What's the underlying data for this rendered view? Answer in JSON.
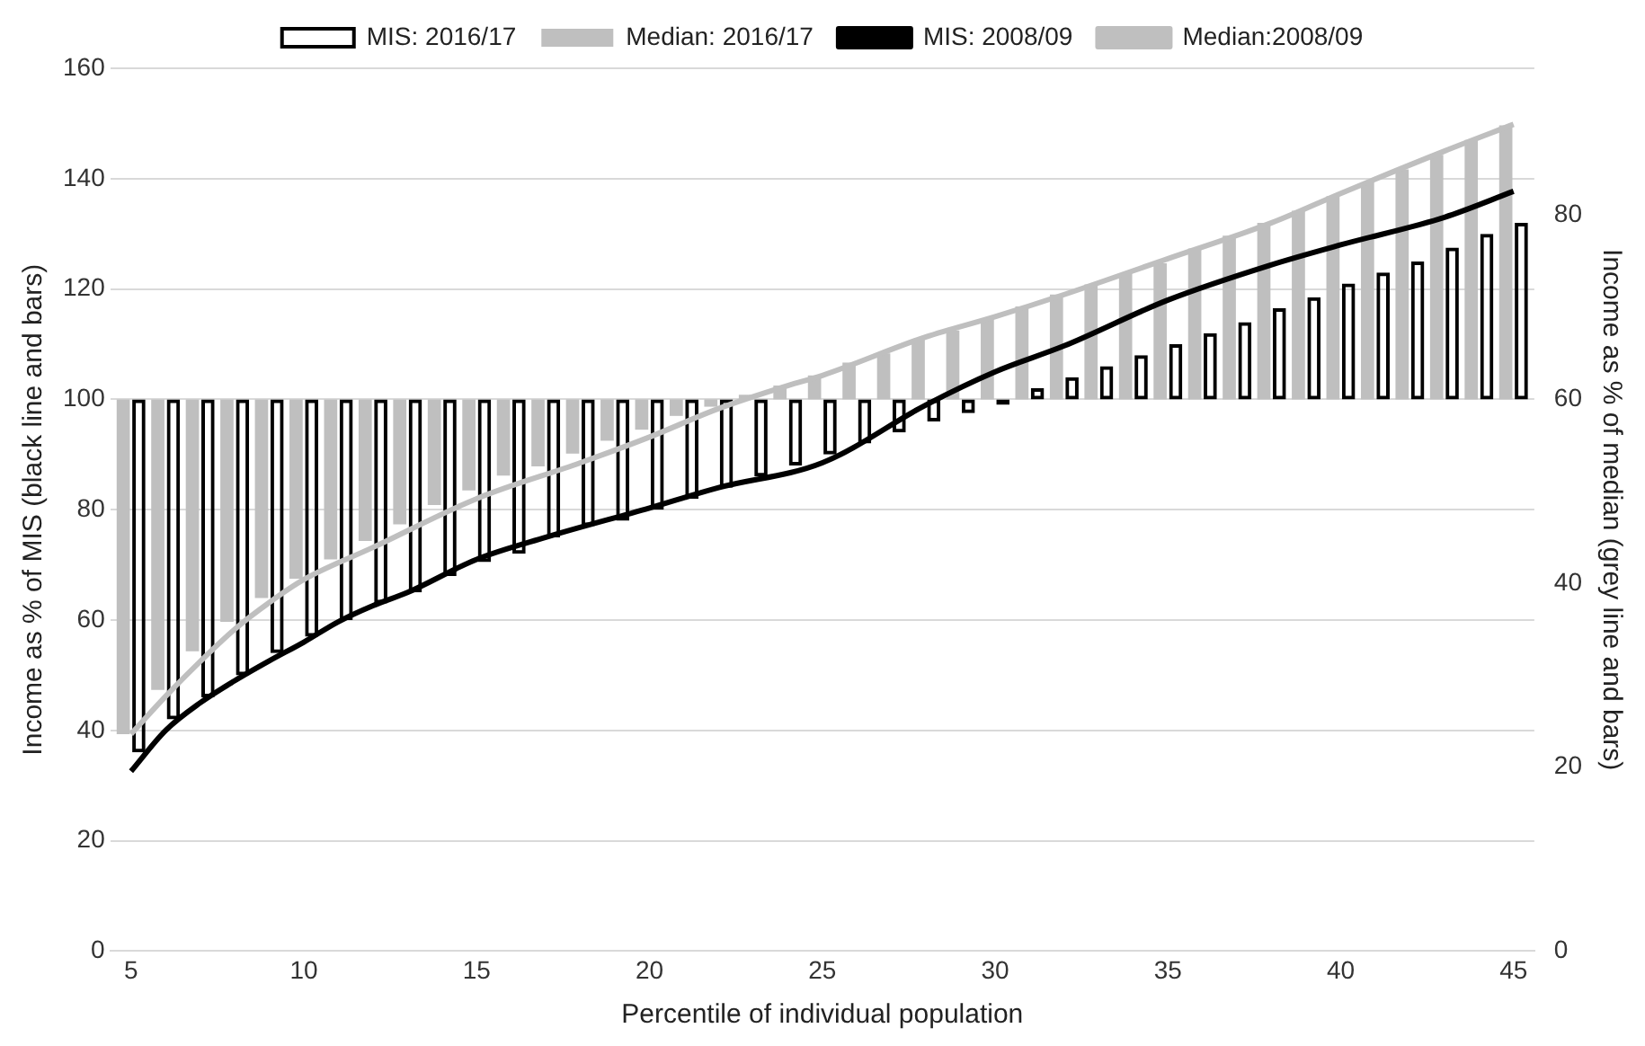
{
  "chart_data": {
    "type": "bar",
    "xlabel": "Percentile of individual population",
    "ylabel": "Income as % of MIS (black line and bars)",
    "y2label": "Income as % of median (grey line and bars)",
    "x": [
      5,
      6,
      7,
      8,
      9,
      10,
      11,
      12,
      13,
      14,
      15,
      16,
      17,
      18,
      19,
      20,
      21,
      22,
      23,
      24,
      25,
      26,
      27,
      28,
      29,
      30,
      31,
      32,
      33,
      34,
      35,
      36,
      37,
      38,
      39,
      40,
      41,
      42,
      43,
      44,
      45
    ],
    "series": [
      {
        "name": "MIS: 2016/17",
        "color": "#000000",
        "base": [
          100,
          100,
          100,
          100,
          100,
          100,
          100,
          100,
          100,
          100,
          100,
          100,
          100,
          100,
          100,
          100,
          100,
          100,
          100,
          100,
          100,
          100,
          100,
          100,
          100,
          100,
          100,
          100,
          100,
          100,
          100,
          100,
          100,
          100,
          100,
          100,
          100,
          100,
          100,
          100,
          100
        ],
        "values": [
          -64,
          -58,
          -54,
          -50,
          -46,
          -43,
          -40,
          -37,
          -35,
          -32,
          -29.5,
          -28,
          -25,
          -23,
          -22,
          -20,
          -18,
          -16,
          -14,
          -12,
          -10,
          -8,
          -6,
          -4,
          -2.5,
          -1,
          2,
          4,
          6,
          8,
          10,
          12,
          14,
          16.5,
          18.5,
          21,
          23,
          25,
          27.5,
          30,
          32
        ]
      },
      {
        "name": "Median: 2016/17",
        "axis": "y2",
        "color": "#bfbfbf",
        "base": [
          60,
          60,
          60,
          60,
          60,
          60,
          60,
          60,
          60,
          60,
          60,
          60,
          60,
          60,
          60,
          60,
          60,
          60,
          60,
          60,
          60,
          60,
          60,
          60,
          60,
          60,
          60,
          60,
          60,
          60,
          60,
          60,
          60,
          60,
          60,
          60,
          60,
          60,
          60,
          60,
          60
        ],
        "values": [
          -36.4,
          -31.6,
          -27.4,
          -24.2,
          -21.6,
          -19.5,
          -17.4,
          -15.4,
          -13.6,
          -11.5,
          -9.9,
          -8.3,
          -7.3,
          -5.9,
          -4.5,
          -3.3,
          -1.8,
          -0.8,
          0.5,
          1.5,
          2.6,
          4,
          5,
          6.5,
          7.5,
          8.7,
          10.1,
          11.4,
          12.5,
          13.7,
          14.8,
          16.4,
          17.8,
          19.2,
          20.5,
          22.1,
          23.6,
          25,
          26.6,
          28.2,
          29.8
        ]
      },
      {
        "name": "MIS: 2008/09",
        "type": "line",
        "color": "#000000",
        "x": [
          5,
          6,
          7,
          8,
          9,
          10,
          11,
          12,
          13,
          15,
          17,
          20,
          22,
          25,
          28,
          30,
          32,
          35,
          38,
          40,
          43,
          45
        ],
        "values": [
          32.6,
          40,
          45,
          49,
          52.6,
          56,
          59.7,
          62.6,
          65,
          71,
          75,
          80.3,
          84,
          88.5,
          99,
          105,
          109.7,
          118,
          124.4,
          128,
          133,
          137.7
        ]
      },
      {
        "name": "Median:2008/09",
        "type": "line",
        "axis": "y2",
        "color": "#bfbfbf",
        "x": [
          5,
          6,
          7,
          8,
          9,
          10,
          12,
          15,
          18,
          20,
          22,
          24,
          25,
          28,
          30,
          32,
          35,
          38,
          40,
          43,
          45
        ],
        "values": [
          23.6,
          27.7,
          31.5,
          35,
          37.9,
          40.4,
          43.9,
          49.2,
          53.1,
          55.9,
          59,
          61.5,
          62.6,
          66.8,
          69,
          71.4,
          75.3,
          79.2,
          82.4,
          87,
          89.9
        ]
      }
    ],
    "xlim": [
      4.4,
      45.6
    ],
    "xticks": [
      5,
      10,
      15,
      20,
      25,
      30,
      35,
      40,
      45
    ],
    "ylim": [
      0,
      160
    ],
    "yticks": [
      0,
      20,
      40,
      60,
      80,
      100,
      120,
      140,
      160
    ],
    "y2lim": [
      0,
      96
    ],
    "y2ticks": [
      0,
      20,
      40,
      60,
      80
    ],
    "grid": "y",
    "legend": "top",
    "marker": "none",
    "line_style": "solid"
  }
}
